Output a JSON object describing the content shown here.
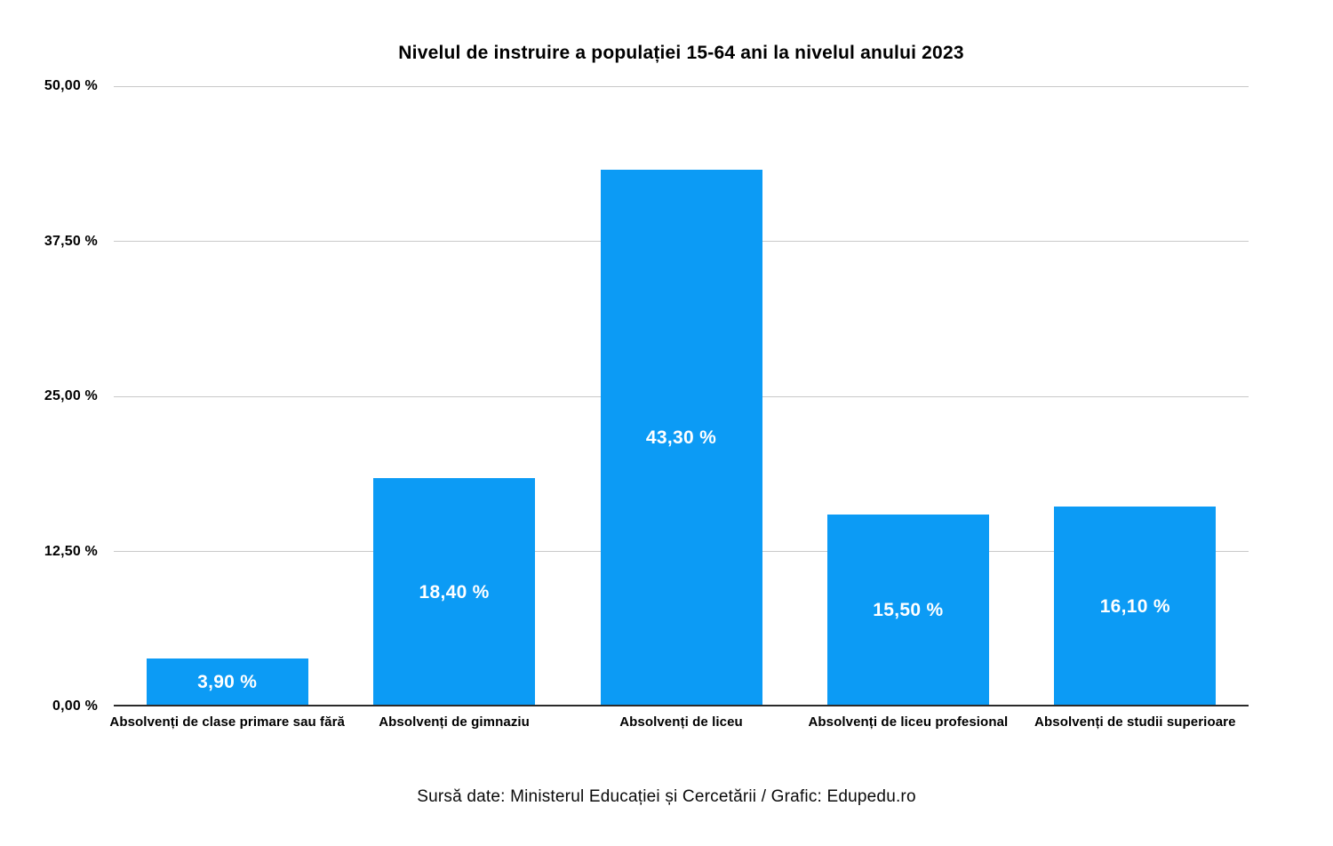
{
  "source": "Sursă date: Ministerul Educației și Cercetării / Grafic: Edupedu.ro",
  "chart_data": {
    "type": "bar",
    "title": "Nivelul de instruire a populației 15-64 ani la nivelul anului 2023",
    "categories": [
      "Absolvenți de clase primare sau fără",
      "Absolvenți de gimnaziu",
      "Absolvenți de liceu",
      "Absolvenți de liceu profesional",
      "Absolvenți de studii superioare"
    ],
    "values": [
      3.9,
      18.4,
      43.3,
      15.5,
      16.1
    ],
    "value_labels": [
      "3,90 %",
      "18,40 %",
      "43,30 %",
      "15,50 %",
      "16,10 %"
    ],
    "xlabel": "",
    "ylabel": "",
    "ylim": [
      0,
      50
    ],
    "yticks": [
      {
        "value": 0,
        "label": "0,00 %"
      },
      {
        "value": 12.5,
        "label": "12,50 %"
      },
      {
        "value": 25,
        "label": "25,00 %"
      },
      {
        "value": 37.5,
        "label": "37,50 %"
      },
      {
        "value": 50,
        "label": "50,00 %"
      }
    ],
    "grid": true,
    "legend": "none",
    "colors": {
      "bar": "#0C9BF5",
      "value_label": "#FFFFFF",
      "gridline": "#C9C9C9",
      "axis_line": "#2A2A2A",
      "text": "#000000"
    }
  }
}
